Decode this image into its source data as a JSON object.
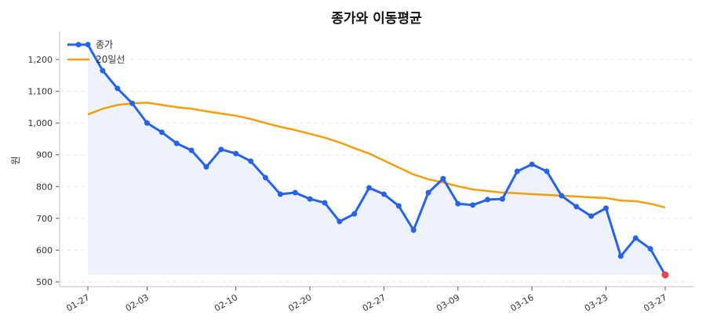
{
  "chart_data": {
    "type": "line",
    "title": "종가와 이동평균",
    "ylabel": "원",
    "xlabel": "",
    "ylim": [
      490,
      1290
    ],
    "yticks": [
      500,
      600,
      700,
      800,
      900,
      1000,
      1100,
      1200
    ],
    "ytick_labels": [
      "500",
      "600",
      "700",
      "800",
      "900",
      "1,000",
      "1,100",
      "1,200"
    ],
    "xticks": [
      {
        "index": 0,
        "label": "01-27"
      },
      {
        "index": 4,
        "label": "02-03"
      },
      {
        "index": 10,
        "label": "02-10"
      },
      {
        "index": 15,
        "label": "02-20"
      },
      {
        "index": 20,
        "label": "02-27"
      },
      {
        "index": 25,
        "label": "03-09"
      },
      {
        "index": 30,
        "label": "03-16"
      },
      {
        "index": 35,
        "label": "03-23"
      },
      {
        "index": 39,
        "label": "03-27"
      }
    ],
    "grid": "horizontal-dashed",
    "legend": "top-left",
    "series": [
      {
        "name": "종가",
        "color": "#2563eb",
        "markers": true,
        "fill": "#eef2fc",
        "values": [
          1247,
          1165,
          1109,
          1062,
          1000,
          971,
          936,
          914,
          862,
          917,
          904,
          880,
          828,
          776,
          781,
          761,
          749,
          690,
          714,
          796,
          776,
          739,
          663,
          781,
          825,
          746,
          742,
          759,
          761,
          848,
          870,
          848,
          771,
          737,
          707,
          732,
          581,
          638,
          604,
          522
        ],
        "last_point_color": "#ef4444"
      },
      {
        "name": "20일선",
        "color": "#f59e0b",
        "markers": false,
        "values": [
          1027,
          1045,
          1057,
          1062,
          1064,
          1057,
          1050,
          1045,
          1037,
          1030,
          1023,
          1013,
          1000,
          988,
          978,
          966,
          954,
          939,
          921,
          904,
          882,
          860,
          838,
          823,
          813,
          801,
          791,
          786,
          781,
          779,
          776,
          774,
          771,
          769,
          766,
          764,
          756,
          754,
          746,
          734
        ]
      }
    ]
  }
}
